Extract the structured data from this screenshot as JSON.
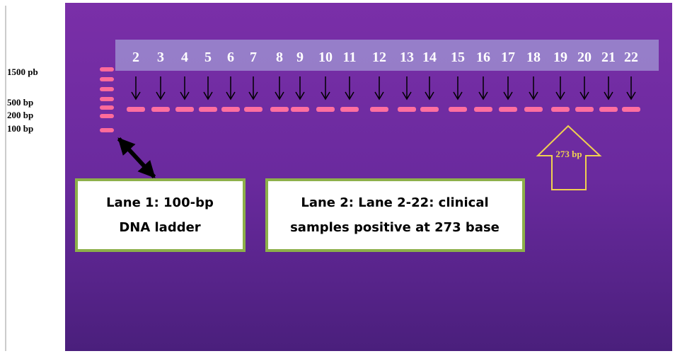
{
  "size_markers": [
    "1500 pb",
    "500 bp",
    "200 bp",
    "100 bp"
  ],
  "lanes": [
    "2",
    "3",
    "4",
    "5",
    "6",
    "7",
    "8",
    "9",
    "10",
    "11",
    "12",
    "13",
    "14",
    "15",
    "16",
    "17",
    "18",
    "19",
    "20",
    "21",
    "22"
  ],
  "ladder_box": {
    "lines": [
      "Lane 1: 100-bp",
      "DNA ladder"
    ]
  },
  "samples_box": {
    "lines": [
      "Lane 2:  Lane 2-22: clinical",
      "samples positive at 273 base"
    ]
  },
  "band_arrow_label": "273 bp"
}
